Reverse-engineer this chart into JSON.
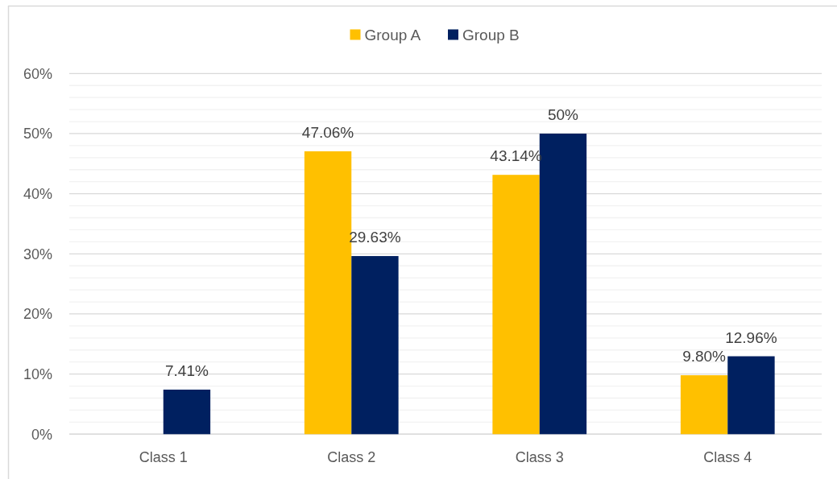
{
  "chart_data": {
    "type": "bar",
    "categories": [
      "Class 1",
      "Class 2",
      "Class 3",
      "Class 4"
    ],
    "series": [
      {
        "name": "Group A",
        "color": "#ffc000",
        "values": [
          null,
          47.06,
          43.14,
          9.8
        ],
        "value_labels": [
          null,
          "47.06%",
          "43.14%",
          "9.80%"
        ]
      },
      {
        "name": "Group B",
        "color": "#002060",
        "values": [
          7.41,
          29.63,
          50,
          12.96
        ],
        "value_labels": [
          "7.41%",
          "29.63%",
          "50%",
          "12.96%"
        ]
      }
    ],
    "ylim": [
      0,
      60
    ],
    "yticks": [
      {
        "value": 0,
        "label": "0%"
      },
      {
        "value": 2,
        "label": null
      },
      {
        "value": 4,
        "label": null
      },
      {
        "value": 6,
        "label": null
      },
      {
        "value": 8,
        "label": null
      },
      {
        "value": 10,
        "label": "10%"
      },
      {
        "value": 12,
        "label": null
      },
      {
        "value": 14,
        "label": null
      },
      {
        "value": 16,
        "label": null
      },
      {
        "value": 18,
        "label": null
      },
      {
        "value": 20,
        "label": "20%"
      },
      {
        "value": 22,
        "label": null
      },
      {
        "value": 24,
        "label": null
      },
      {
        "value": 26,
        "label": null
      },
      {
        "value": 28,
        "label": null
      },
      {
        "value": 30,
        "label": "30%"
      },
      {
        "value": 32,
        "label": null
      },
      {
        "value": 34,
        "label": null
      },
      {
        "value": 36,
        "label": null
      },
      {
        "value": 38,
        "label": null
      },
      {
        "value": 40,
        "label": "40%"
      },
      {
        "value": 42,
        "label": null
      },
      {
        "value": 44,
        "label": null
      },
      {
        "value": 46,
        "label": null
      },
      {
        "value": 48,
        "label": null
      },
      {
        "value": 50,
        "label": "50%"
      },
      {
        "value": 52,
        "label": null
      },
      {
        "value": 54,
        "label": null
      },
      {
        "value": 56,
        "label": null
      },
      {
        "value": 58,
        "label": null
      },
      {
        "value": 60,
        "label": "60%"
      }
    ],
    "grid": "y",
    "legend": "top"
  }
}
